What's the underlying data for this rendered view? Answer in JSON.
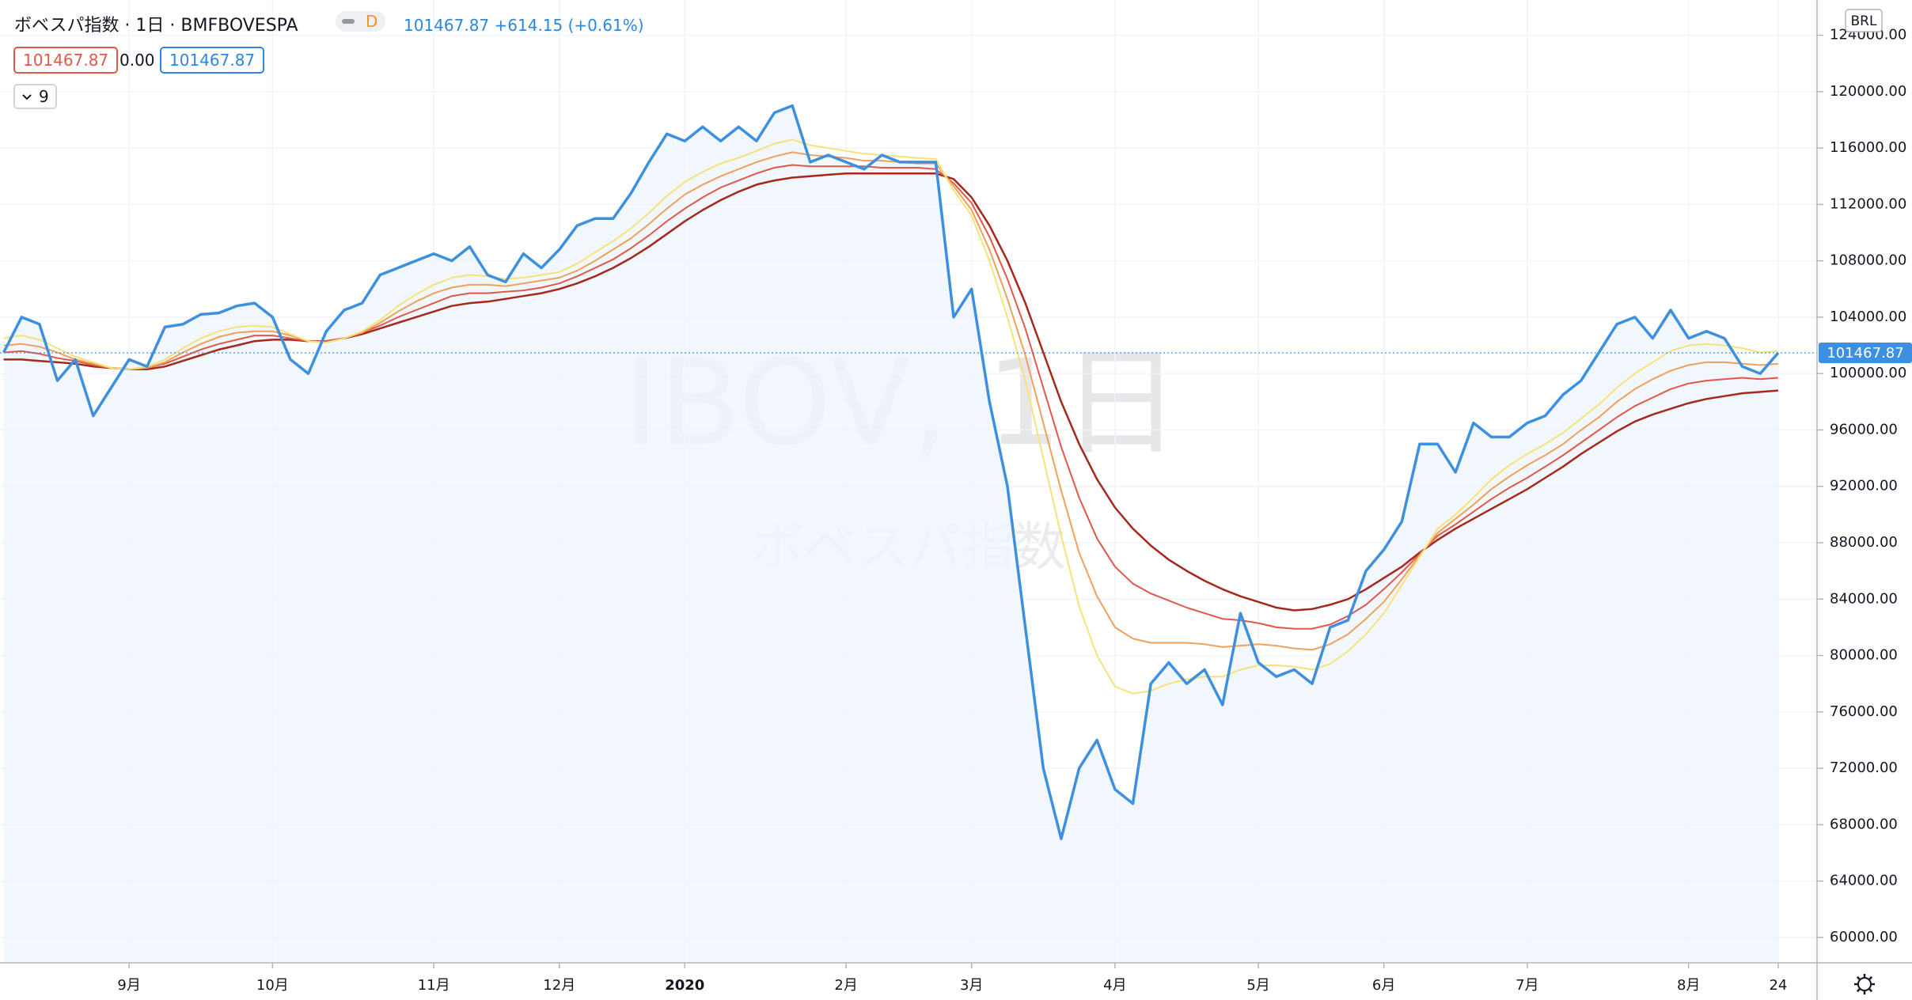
{
  "header": {
    "title": "ボベスパ指数 · 1日 · BMFBOVESPA",
    "badge": "D",
    "last": 101467.87,
    "change": {
      "value": 614.15,
      "label": "+614.15"
    },
    "change_pct": {
      "value": 0.61,
      "label": "(+0.61%)"
    },
    "indicator_values": [
      101467.87,
      {
        "value": 0,
        "label": "0.00"
      },
      101467.87
    ],
    "ma_length": 9
  },
  "chart_data": {
    "type": "line",
    "watermark": {
      "symbol": "IBOV, 1日",
      "name": "ボベスパ指数"
    },
    "currency": "BRL",
    "last_price": 101467.87,
    "categories": [
      null,
      null,
      null,
      null,
      null,
      null,
      null,
      "9月",
      null,
      null,
      null,
      null,
      null,
      null,
      null,
      "10月",
      null,
      null,
      null,
      null,
      null,
      null,
      null,
      null,
      "11月",
      null,
      null,
      null,
      null,
      null,
      null,
      "12月",
      null,
      null,
      null,
      null,
      null,
      null,
      "2020",
      null,
      null,
      null,
      null,
      null,
      null,
      null,
      null,
      "2月",
      null,
      null,
      null,
      null,
      null,
      null,
      "3月",
      null,
      null,
      null,
      null,
      null,
      null,
      null,
      "4月",
      null,
      null,
      null,
      null,
      null,
      null,
      null,
      "5月",
      null,
      null,
      null,
      null,
      null,
      null,
      "6月",
      null,
      null,
      null,
      null,
      null,
      null,
      null,
      "7月",
      null,
      null,
      null,
      null,
      null,
      null,
      null,
      null,
      "8月",
      null,
      null,
      null,
      null,
      "24"
    ],
    "bold_category": "2020",
    "ylim": [
      58200,
      126500
    ],
    "yticks": [
      {
        "value": 60000,
        "label": "60000.00"
      },
      {
        "value": 64000,
        "label": "64000.00"
      },
      {
        "value": 68000,
        "label": "68000.00"
      },
      {
        "value": 72000,
        "label": "72000.00"
      },
      {
        "value": 76000,
        "label": "76000.00"
      },
      {
        "value": 80000,
        "label": "80000.00"
      },
      {
        "value": 84000,
        "label": "84000.00"
      },
      {
        "value": 88000,
        "label": "88000.00"
      },
      {
        "value": 92000,
        "label": "92000.00"
      },
      {
        "value": 96000,
        "label": "96000.00"
      },
      {
        "value": 100000,
        "label": "100000.00"
      },
      {
        "value": 104000,
        "label": "104000.00"
      },
      {
        "value": 108000,
        "label": "108000.00"
      },
      {
        "value": 112000,
        "label": "112000.00"
      },
      {
        "value": 116000,
        "label": "116000.00"
      },
      {
        "value": 120000,
        "label": "120000.00"
      },
      {
        "value": 124000,
        "label": "124000.00"
      }
    ],
    "grid": true,
    "series": [
      {
        "color": "#a5281b",
        "width": 2.5,
        "values": [
          101000,
          101000,
          100900,
          100800,
          100700,
          100500,
          100400,
          100300,
          100300,
          100500,
          100900,
          101300,
          101700,
          102000,
          102300,
          102400,
          102400,
          102300,
          102300,
          102500,
          102800,
          103200,
          103600,
          104000,
          104400,
          104800,
          105000,
          105100,
          105300,
          105500,
          105700,
          106000,
          106400,
          106900,
          107500,
          108200,
          109000,
          109900,
          110800,
          111600,
          112300,
          112900,
          113400,
          113700,
          113900,
          114000,
          114100,
          114200,
          114200,
          114200,
          114200,
          114200,
          114200,
          113800,
          112500,
          110500,
          108000,
          105000,
          101500,
          98000,
          95000,
          92500,
          90500,
          89000,
          87800,
          86800,
          86000,
          85300,
          84700,
          84200,
          83800,
          83400,
          83200,
          83300,
          83600,
          84000,
          84700,
          85500,
          86300,
          87300,
          88200,
          89000,
          89700,
          90400,
          91100,
          91800,
          92600,
          93400,
          94300,
          95100,
          95900,
          96600,
          97100,
          97500,
          97900,
          98200,
          98400,
          98600,
          98700,
          98800
        ]
      },
      {
        "color": "#e0584a",
        "width": 2,
        "values": [
          101500,
          101600,
          101400,
          101100,
          100900,
          100600,
          100400,
          100300,
          100400,
          100700,
          101200,
          101700,
          102100,
          102400,
          102700,
          102700,
          102500,
          102300,
          102300,
          102500,
          102900,
          103400,
          104000,
          104500,
          105000,
          105500,
          105700,
          105700,
          105800,
          105900,
          106100,
          106400,
          106900,
          107500,
          108100,
          108900,
          109800,
          110800,
          111700,
          112500,
          113200,
          113700,
          114200,
          114600,
          114800,
          114700,
          114700,
          114700,
          114700,
          114600,
          114600,
          114600,
          114500,
          113500,
          112100,
          109700,
          106700,
          103200,
          99000,
          94800,
          91200,
          88300,
          86300,
          85100,
          84400,
          83900,
          83400,
          83000,
          82600,
          82500,
          82300,
          82000,
          81900,
          81900,
          82200,
          82800,
          83600,
          84700,
          85900,
          87200,
          88500,
          89300,
          90200,
          91100,
          91900,
          92600,
          93400,
          94200,
          95100,
          96000,
          96900,
          97700,
          98300,
          98900,
          99300,
          99500,
          99600,
          99700,
          99600,
          99700
        ]
      },
      {
        "color": "#f0a05a",
        "width": 2,
        "values": [
          102000,
          102100,
          101900,
          101500,
          101000,
          100700,
          100400,
          100300,
          100400,
          100800,
          101500,
          102100,
          102600,
          102900,
          103000,
          103000,
          102700,
          102300,
          102200,
          102500,
          102900,
          103600,
          104400,
          105100,
          105700,
          106100,
          106300,
          106300,
          106200,
          106400,
          106600,
          106800,
          107300,
          108000,
          108800,
          109600,
          110600,
          111700,
          112700,
          113400,
          114000,
          114500,
          115000,
          115400,
          115700,
          115500,
          115400,
          115300,
          115100,
          115100,
          115000,
          114900,
          114900,
          113300,
          111600,
          108800,
          105300,
          101300,
          96500,
          91700,
          87300,
          84200,
          82000,
          81200,
          80900,
          80900,
          80900,
          80800,
          80600,
          80700,
          80800,
          80700,
          80500,
          80400,
          80800,
          81500,
          82600,
          83800,
          85400,
          87100,
          88700,
          89700,
          90700,
          91800,
          92700,
          93500,
          94200,
          95000,
          96000,
          96900,
          98000,
          98900,
          99600,
          100200,
          100600,
          100800,
          100800,
          100700,
          100600,
          100700
        ]
      },
      {
        "color": "#f5e37a",
        "width": 2,
        "values": [
          102500,
          102700,
          102400,
          101800,
          101200,
          100800,
          100400,
          100300,
          100500,
          101000,
          101800,
          102500,
          103000,
          103300,
          103400,
          103300,
          102800,
          102300,
          102200,
          102500,
          103000,
          103800,
          104800,
          105600,
          106300,
          106800,
          107000,
          106900,
          106700,
          106800,
          107000,
          107200,
          107800,
          108600,
          109400,
          110300,
          111400,
          112600,
          113600,
          114300,
          114900,
          115300,
          115800,
          116300,
          116600,
          116200,
          116000,
          115800,
          115600,
          115500,
          115400,
          115300,
          115200,
          113000,
          111200,
          108000,
          104000,
          99500,
          94000,
          88500,
          83500,
          80000,
          77800,
          77300,
          77500,
          78000,
          78300,
          78500,
          78500,
          79000,
          79300,
          79300,
          79200,
          79000,
          79400,
          80300,
          81500,
          83000,
          85000,
          87000,
          89000,
          90000,
          91200,
          92500,
          93500,
          94300,
          95000,
          95800,
          96800,
          97800,
          99000,
          100000,
          100800,
          101600,
          102000,
          102100,
          102000,
          101800,
          101500,
          101600
        ]
      },
      {
        "color": "#3d8fe0",
        "width": 3.5,
        "fill_color": "#eef5fb",
        "values": [
          101500,
          104000,
          103500,
          99500,
          101000,
          97000,
          99000,
          101000,
          100500,
          103300,
          103500,
          104200,
          104300,
          104800,
          105000,
          104000,
          101000,
          100000,
          103000,
          104500,
          105000,
          107000,
          107500,
          108000,
          108500,
          108000,
          109000,
          107000,
          106500,
          108500,
          107500,
          108800,
          110500,
          111000,
          111000,
          112800,
          115000,
          117000,
          116500,
          117500,
          116500,
          117500,
          116500,
          118500,
          119000,
          115000,
          115500,
          115000,
          114500,
          115500,
          115000,
          115000,
          115000,
          104000,
          106000,
          98000,
          92000,
          82000,
          72000,
          67000,
          72000,
          74000,
          70500,
          69500,
          78000,
          79500,
          78000,
          79000,
          76500,
          83000,
          79500,
          78500,
          79000,
          78000,
          82000,
          82500,
          86000,
          87500,
          89500,
          95000,
          95000,
          93000,
          96500,
          95500,
          95500,
          96500,
          97000,
          98500,
          99500,
          101500,
          103500,
          104000,
          102500,
          104500,
          102500,
          103000,
          102500,
          100500,
          100000,
          101467.87
        ]
      }
    ]
  }
}
